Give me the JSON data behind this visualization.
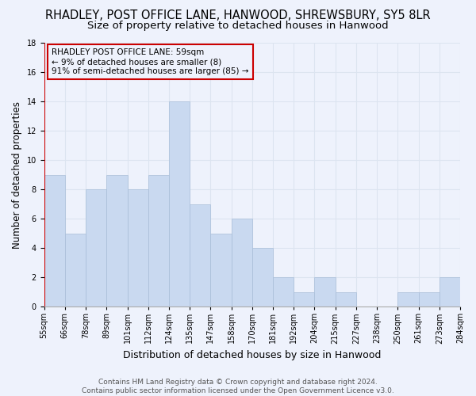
{
  "title": "RHADLEY, POST OFFICE LANE, HANWOOD, SHREWSBURY, SY5 8LR",
  "subtitle": "Size of property relative to detached houses in Hanwood",
  "xlabel": "Distribution of detached houses by size in Hanwood",
  "ylabel": "Number of detached properties",
  "bar_labels": [
    "55sqm",
    "66sqm",
    "78sqm",
    "89sqm",
    "101sqm",
    "112sqm",
    "124sqm",
    "135sqm",
    "147sqm",
    "158sqm",
    "170sqm",
    "181sqm",
    "192sqm",
    "204sqm",
    "215sqm",
    "227sqm",
    "238sqm",
    "250sqm",
    "261sqm",
    "273sqm",
    "284sqm"
  ],
  "bar_values": [
    9,
    5,
    8,
    9,
    8,
    9,
    14,
    7,
    5,
    6,
    4,
    2,
    1,
    2,
    1,
    0,
    0,
    1,
    1,
    2
  ],
  "bar_color": "#c9d9f0",
  "bar_edge_color": "#a8bdd8",
  "grid_color": "#dce4f0",
  "background_color": "#eef2fc",
  "annotation_text": "RHADLEY POST OFFICE LANE: 59sqm\n← 9% of detached houses are smaller (8)\n91% of semi-detached houses are larger (85) →",
  "annotation_box_edge": "#cc0000",
  "vline_color": "#cc0000",
  "ylim": [
    0,
    18
  ],
  "yticks": [
    0,
    2,
    4,
    6,
    8,
    10,
    12,
    14,
    16,
    18
  ],
  "footer": "Contains HM Land Registry data © Crown copyright and database right 2024.\nContains public sector information licensed under the Open Government Licence v3.0.",
  "title_fontsize": 10.5,
  "subtitle_fontsize": 9.5,
  "xlabel_fontsize": 9,
  "ylabel_fontsize": 8.5,
  "tick_fontsize": 7,
  "annotation_fontsize": 7.5,
  "footer_fontsize": 6.5
}
